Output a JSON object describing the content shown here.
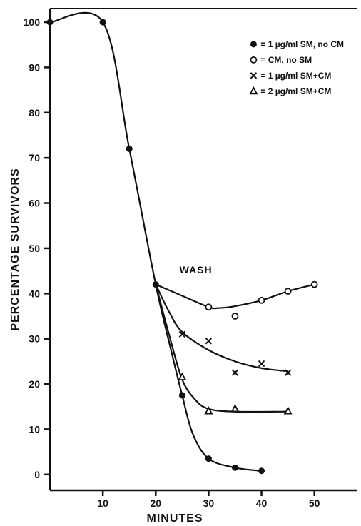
{
  "chart_data": {
    "type": "line",
    "xlabel": "MINUTES",
    "ylabel": "PERCENTAGE SURVIVORS",
    "xlim": [
      0,
      58
    ],
    "ylim": [
      -3.5,
      103
    ],
    "x_ticks": [
      10,
      20,
      30,
      40,
      50
    ],
    "y_ticks": [
      0,
      10,
      20,
      30,
      40,
      50,
      60,
      70,
      80,
      90,
      100
    ],
    "grid": false,
    "legend_position": "top-right",
    "legend": [
      {
        "label": "1 µg/ml SM, no CM",
        "marker": "filled-circle"
      },
      {
        "label": "CM, no SM",
        "marker": "open-circle"
      },
      {
        "label": "1 µg/ml SM+CM",
        "marker": "cross"
      },
      {
        "label": "2 µg/ml SM+CM",
        "marker": "open-triangle"
      }
    ],
    "annotations": [
      {
        "text": "WASH",
        "x": 24.5,
        "y": 44.5
      }
    ],
    "series": [
      {
        "marker": "filled-circle",
        "points": [
          [
            0,
            100
          ],
          [
            10,
            100
          ],
          [
            15,
            72
          ],
          [
            20,
            42
          ],
          [
            25,
            17.5
          ],
          [
            30,
            3.5
          ],
          [
            35,
            1.5
          ],
          [
            40,
            0.8
          ]
        ],
        "curve": [
          [
            0,
            100
          ],
          [
            10,
            100
          ],
          [
            15,
            72
          ],
          [
            20,
            42
          ],
          [
            23,
            27
          ],
          [
            25,
            17.5
          ],
          [
            27,
            9
          ],
          [
            30,
            3.5
          ],
          [
            35,
            1.5
          ],
          [
            40,
            0.8
          ]
        ]
      },
      {
        "marker": "open-circle",
        "points": [
          [
            30,
            37
          ],
          [
            35,
            35
          ],
          [
            40,
            38.5
          ],
          [
            45,
            40.5
          ],
          [
            50,
            42
          ]
        ],
        "curve": [
          [
            20,
            42
          ],
          [
            25,
            39.5
          ],
          [
            30,
            37
          ],
          [
            32,
            36.8
          ],
          [
            35,
            37.2
          ],
          [
            40,
            38.5
          ],
          [
            45,
            40.5
          ],
          [
            50,
            42
          ]
        ]
      },
      {
        "marker": "cross",
        "points": [
          [
            25,
            31
          ],
          [
            30,
            29.5
          ],
          [
            35,
            22.5
          ],
          [
            40,
            24.5
          ],
          [
            45,
            22.5
          ]
        ],
        "curve": [
          [
            20,
            42
          ],
          [
            22.5,
            36
          ],
          [
            25,
            31.5
          ],
          [
            30,
            27.5
          ],
          [
            35,
            25
          ],
          [
            40,
            23.5
          ],
          [
            45,
            22.8
          ]
        ]
      },
      {
        "marker": "open-triangle",
        "points": [
          [
            25,
            21.5
          ],
          [
            30,
            14
          ],
          [
            35,
            14.5
          ],
          [
            45,
            14
          ]
        ],
        "curve": [
          [
            20,
            42
          ],
          [
            22.5,
            31
          ],
          [
            25,
            21
          ],
          [
            27.5,
            16.5
          ],
          [
            30,
            14.5
          ],
          [
            35,
            13.9
          ],
          [
            45,
            13.9
          ]
        ]
      }
    ]
  }
}
